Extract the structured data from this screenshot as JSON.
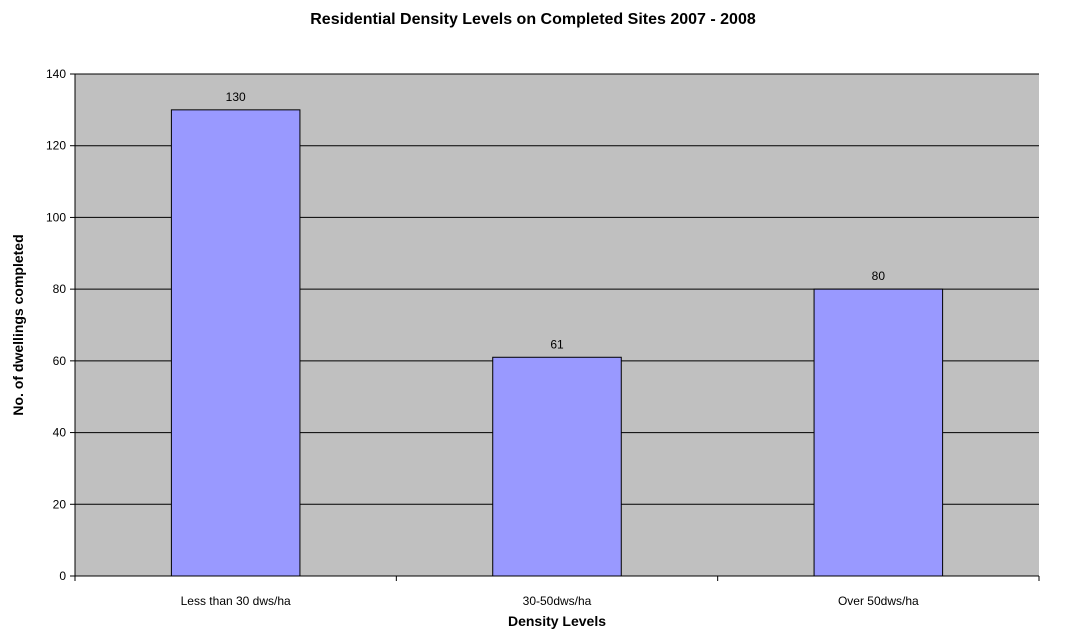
{
  "chart_data": {
    "type": "bar",
    "title": "Residential Density Levels on Completed Sites 2007 - 2008",
    "xlabel": "Density Levels",
    "ylabel": "No. of dwellings completed",
    "categories": [
      "Less than 30 dws/ha",
      "30-50dws/ha",
      "Over 50dws/ha"
    ],
    "values": [
      130,
      61,
      80
    ],
    "data_labels": [
      "130",
      "61",
      "80"
    ],
    "ylim": [
      0,
      140
    ],
    "yticks": [
      0,
      20,
      40,
      60,
      80,
      100,
      120,
      140
    ],
    "grid": true,
    "legend": "none",
    "colors": {
      "plot_background": "#c0c0c0",
      "bar_fill": "#9999ff",
      "bar_stroke": "#000000",
      "gridline": "#000000"
    }
  }
}
